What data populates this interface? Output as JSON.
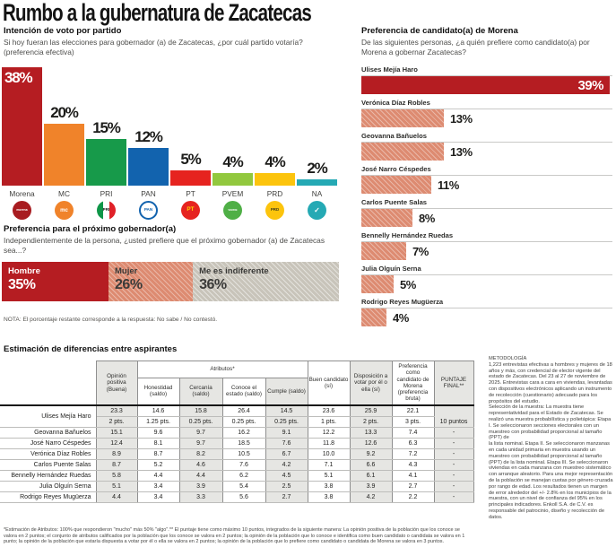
{
  "title": "Rumbo a la gubernatura de Zacatecas",
  "party_chart": {
    "heading": "Intención de voto por partido",
    "subtitle": "Si hoy fueran las elecciones para gobernador (a) de Zacatecas, ¿por cuál partido votaría? (preferencia efectiva)",
    "parties": [
      {
        "name": "Morena",
        "value": 38,
        "label": "38%",
        "color": "#b51d22",
        "label_inside": true,
        "logo_bg": "#a81c20",
        "logo_fg": "#ffffff",
        "logo_glyph": "morena",
        "logo_fs": "3.4px"
      },
      {
        "name": "MC",
        "value": 20,
        "label": "20%",
        "color": "#f0832a",
        "logo_bg": "#f0832a",
        "logo_fg": "#ffffff",
        "logo_glyph": "mc",
        "logo_fs": "6px"
      },
      {
        "name": "PRI",
        "value": 15,
        "label": "15%",
        "color": "#179a4a",
        "logo_bg": "tricolor",
        "logo_fg": "#1a1a1a",
        "logo_glyph": "PRI",
        "logo_fs": "4.6px"
      },
      {
        "name": "PAN",
        "value": 12,
        "label": "12%",
        "color": "#1263ae",
        "logo_bg": "#ffffff",
        "logo_fg": "#1263ae",
        "logo_glyph": "PAN",
        "logo_fs": "4.6px",
        "logo_border": "#1263ae"
      },
      {
        "name": "PT",
        "value": 5,
        "label": "5%",
        "color": "#e6231f",
        "logo_bg": "#e6231f",
        "logo_fg": "#ffd400",
        "logo_glyph": "PT",
        "logo_fs": "6.4px"
      },
      {
        "name": "PVEM",
        "value": 4,
        "label": "4%",
        "color": "#92c83e",
        "logo_bg": "#4faf46",
        "logo_fg": "#ffffff",
        "logo_glyph": "VERDE",
        "logo_fs": "3px"
      },
      {
        "name": "PRD",
        "value": 4,
        "label": "4%",
        "color": "#fcc40d",
        "logo_bg": "#fcc40d",
        "logo_fg": "#3a3a1a",
        "logo_glyph": "PRD",
        "logo_fs": "4.4px"
      },
      {
        "name": "NA",
        "value": 2,
        "label": "2%",
        "color": "#25a9b4",
        "logo_bg": "#25a9b4",
        "logo_fg": "#ffffff",
        "logo_glyph": "✓",
        "logo_fs": "8px"
      }
    ]
  },
  "governor_pref": {
    "heading": "Preferencia para el próximo gobernador(a)",
    "subtitle": "Independientemente de la persona, ¿usted prefiere que el próximo gobernador (a) de Zacatecas sea...?",
    "segments": [
      {
        "label": "Hombre",
        "value": 35,
        "value_label": "35%",
        "style": "solid"
      },
      {
        "label": "Mujer",
        "value": 26,
        "value_label": "26%",
        "style": "hatch-salmon"
      },
      {
        "label": "Me es indiferente",
        "value": 36,
        "value_label": "36%",
        "style": "hatch-gray"
      }
    ],
    "note": "NOTA: El porcentaje restante corresponde a la respuesta: No sabe / No contestó."
  },
  "morena_pref": {
    "heading": "Preferencia de candidato(a) de Morena",
    "subtitle": "De las siguientes personas, ¿a quién prefiere como candidato(a) por Morena a gobernar Zacatecas?",
    "candidates": [
      {
        "name": "Ulises Mejía Haro",
        "value": 39,
        "label": "39%",
        "highlight": true
      },
      {
        "name": "Verónica Díaz Robles",
        "value": 13,
        "label": "13%",
        "highlight": false
      },
      {
        "name": "Geovanna Bañuelos",
        "value": 13,
        "label": "13%",
        "highlight": false
      },
      {
        "name": "José Narro Céspedes",
        "value": 11,
        "label": "11%",
        "highlight": false
      },
      {
        "name": "Carlos Puente Salas",
        "value": 8,
        "label": "8%",
        "highlight": false
      },
      {
        "name": "Bennelly Hernández Ruedas",
        "value": 7,
        "label": "7%",
        "highlight": false
      },
      {
        "name": "Julia Olguín Serna",
        "value": 5,
        "label": "5%",
        "highlight": false
      },
      {
        "name": "Rodrigo Reyes Mugüerza",
        "value": 4,
        "label": "4%",
        "highlight": false
      }
    ]
  },
  "table": {
    "heading": "Estimación de diferencias entre aspirantes",
    "group_header": "Atributos*",
    "columns": [
      "Opinión positiva (Buena)",
      "Honestidad (saldo)",
      "Cercanía (saldo)",
      "Conoce el estado (saldo)",
      "Cumple (saldo)",
      "Buen candidato (sí)",
      "Disposición a votar por él o ella (sí)",
      "Preferencia como candidato de Morena (preferencia bruta)",
      "PUNTAJE FINAL**"
    ],
    "leader": {
      "name": "Ulises Mejía Haro",
      "values": [
        "23.3",
        "14.6",
        "15.8",
        "26.4",
        "14.5",
        "23.6",
        "25.9",
        "22.1"
      ],
      "points": [
        "2 pts.",
        "1.25 pts.",
        "0.25 pts.",
        "0.25 pts.",
        "0.25 pts.",
        "1 pts.",
        "2 pts.",
        "3 pts."
      ],
      "final": "10 puntos"
    },
    "rows": [
      {
        "name": "Geovanna Bañuelos",
        "values": [
          "15.1",
          "9.6",
          "9.7",
          "16.2",
          "9.1",
          "12.2",
          "13.3",
          "7.4",
          "-"
        ]
      },
      {
        "name": "José Narro Céspedes",
        "values": [
          "12.4",
          "8.1",
          "9.7",
          "18.5",
          "7.6",
          "11.8",
          "12.6",
          "6.3",
          "-"
        ]
      },
      {
        "name": "Verónica Díaz Robles",
        "values": [
          "8.9",
          "8.7",
          "8.2",
          "10.5",
          "6.7",
          "10.0",
          "9.2",
          "7.2",
          "-"
        ]
      },
      {
        "name": "Carlos Puente Salas",
        "values": [
          "8.7",
          "5.2",
          "4.6",
          "7.6",
          "4.2",
          "7.1",
          "6.6",
          "4.3",
          "-"
        ]
      },
      {
        "name": "Bennelly Hernández Ruedas",
        "values": [
          "5.8",
          "4.4",
          "4.4",
          "6.2",
          "4.5",
          "5.1",
          "6.1",
          "4.1",
          "-"
        ]
      },
      {
        "name": "Julia Olguín Serna",
        "values": [
          "5.1",
          "3.4",
          "3.9",
          "5.4",
          "2.5",
          "3.8",
          "3.9",
          "2.7",
          "-"
        ]
      },
      {
        "name": "Rodrigo Reyes Mugüerza",
        "values": [
          "4.4",
          "3.4",
          "3.3",
          "5.6",
          "2.7",
          "3.8",
          "4.2",
          "2.2",
          "-"
        ]
      }
    ]
  },
  "methodology": "METODOLOGÍA\n1,223 entrevistas efectivas a hombres y mujeres de 18 años y más, con credencial de elector vigente del estado de Zacatecas. Del 23 al 27 de noviembre de 2025. Entrevistas cara a cara en viviendas, levantadas con dispositivos electrónicos aplicando un instrumento de recolección (cuestionario) adecuado para los propósitos del estudio.\nSelección de la muestra: La muestra tiene representatividad para el Estado de Zacatecas. Se realizó una muestra probabilística y polietápica: Etapa I. Se seleccionaron secciones electorales con un muestreo con probabilidad proporcional al tamaño (PPT) de\nla lista nominal. Etapa II. Se seleccionaron manzanas en cada unidad primaria en muestra usando un muestreo con probabilidad proporcional al tamaño (PPT) de la lista nominal. Etapa III. Se seleccionaron viviendas en cada manzana con muestreo sistemático con arranque aleatorio. Para una mejor representación de la población se manejan cuotas por género cruzada por rango de edad. Los resultados tienen un margen de error alrededor del +/- 2.8% en los municipios de la muestra, con un nivel de confianza del 95% en los principales indicadores. Enkoll S.A. de C.V. es responsable del patrocinio, diseño y recolección de datos.",
  "footnote": "*Estimación de Atributos: 100% que respondieron \"mucho\" más 50% \"algo\".** El puntaje tiene como máximo 10 puntos, integrados de la siguiente manera: La opinión positiva de la población que los conoce se valora en 2 puntos; el conjunto de atributos calificados por la población que los conoce se valora en 2 puntos; la opinión de la población que lo conoce e identifica como buen candidato o candidata se valora en 1 punto; la opinión de la población que estaría dispuesta a votar por él o ella se valora en 2 puntos; la opinión de la población que lo prefiere como candidato o candidata de Morena se valora en 3 puntos.",
  "chart_data": [
    {
      "type": "bar",
      "title": "Intención de voto por partido",
      "categories": [
        "Morena",
        "MC",
        "PRI",
        "PAN",
        "PT",
        "PVEM",
        "PRD",
        "NA"
      ],
      "values": [
        38,
        20,
        15,
        12,
        5,
        4,
        4,
        2
      ],
      "unit": "%",
      "ylim": [
        0,
        40
      ],
      "grid": false,
      "legend": "none"
    },
    {
      "type": "bar",
      "orientation": "horizontal",
      "title": "Preferencia de candidato(a) de Morena",
      "categories": [
        "Ulises Mejía Haro",
        "Verónica Díaz Robles",
        "Geovanna Bañuelos",
        "José Narro Céspedes",
        "Carlos Puente Salas",
        "Bennelly Hernández Ruedas",
        "Julia Olguín Serna",
        "Rodrigo Reyes Mugüerza"
      ],
      "values": [
        39,
        13,
        13,
        11,
        8,
        7,
        5,
        4
      ],
      "unit": "%",
      "xlim": [
        0,
        40
      ]
    },
    {
      "type": "bar",
      "stacked": true,
      "title": "Preferencia para el próximo gobernador(a)",
      "categories": [
        "Hombre",
        "Mujer",
        "Me es indiferente"
      ],
      "values": [
        35,
        26,
        36
      ],
      "unit": "%",
      "note": "El porcentaje restante corresponde a: No sabe / No contestó"
    },
    {
      "type": "table",
      "title": "Estimación de diferencias entre aspirantes",
      "columns": [
        "Aspirante",
        "Opinión positiva (Buena)",
        "Honestidad (saldo)",
        "Cercanía (saldo)",
        "Conoce el estado (saldo)",
        "Cumple (saldo)",
        "Buen candidato (sí)",
        "Disposición a votar por él o ella (sí)",
        "Preferencia como candidato de Morena (preferencia bruta)",
        "PUNTAJE FINAL**"
      ],
      "rows": [
        [
          "Ulises Mejía Haro",
          23.3,
          14.6,
          15.8,
          26.4,
          14.5,
          23.6,
          25.9,
          22.1,
          "10 puntos"
        ],
        [
          "Geovanna Bañuelos",
          15.1,
          9.6,
          9.7,
          16.2,
          9.1,
          12.2,
          13.3,
          7.4,
          "-"
        ],
        [
          "José Narro Céspedes",
          12.4,
          8.1,
          9.7,
          18.5,
          7.6,
          11.8,
          12.6,
          6.3,
          "-"
        ],
        [
          "Verónica Díaz Robles",
          8.9,
          8.7,
          8.2,
          10.5,
          6.7,
          10.0,
          9.2,
          7.2,
          "-"
        ],
        [
          "Carlos Puente Salas",
          8.7,
          5.2,
          4.6,
          7.6,
          4.2,
          7.1,
          6.6,
          4.3,
          "-"
        ],
        [
          "Bennelly Hernández Ruedas",
          5.8,
          4.4,
          4.4,
          6.2,
          4.5,
          5.1,
          6.1,
          4.1,
          "-"
        ],
        [
          "Julia Olguín Serna",
          5.1,
          3.4,
          3.9,
          5.4,
          2.5,
          3.8,
          3.9,
          2.7,
          "-"
        ],
        [
          "Rodrigo Reyes Mugüerza",
          4.4,
          3.4,
          3.3,
          5.6,
          2.7,
          3.8,
          4.2,
          2.2,
          "-"
        ]
      ],
      "leader_points_row": [
        "Ulises Mejía Haro",
        "2 pts.",
        "1.25 pts.",
        "0.25 pts.",
        "0.25 pts.",
        "0.25 pts.",
        "1 pts.",
        "2 pts.",
        "3 pts.",
        "10 puntos"
      ]
    }
  ]
}
